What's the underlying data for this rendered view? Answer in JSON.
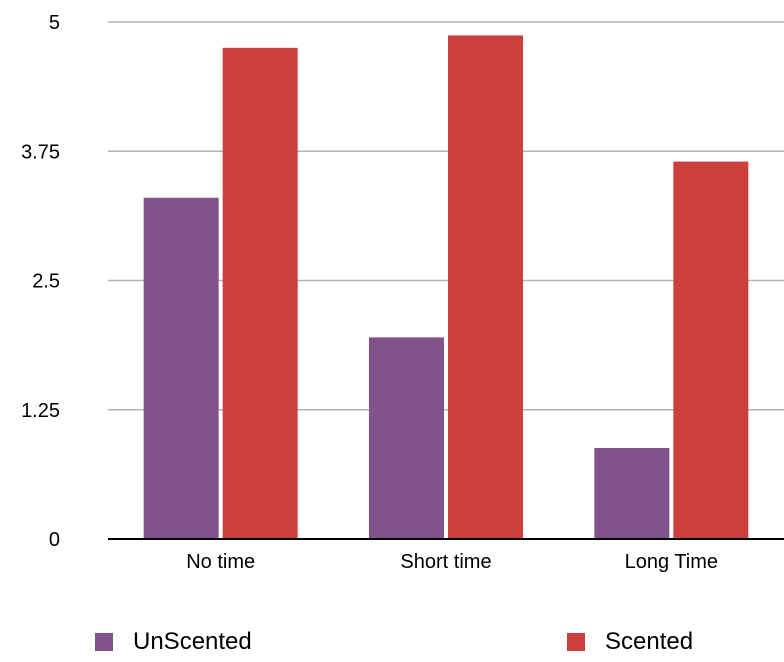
{
  "chart_data": {
    "type": "bar",
    "categories": [
      "No time",
      "Short time",
      "Long Time"
    ],
    "series": [
      {
        "name": "UnScented",
        "values": [
          3.3,
          1.95,
          0.88
        ],
        "color": "#82528c"
      },
      {
        "name": "Scented",
        "values": [
          4.75,
          4.87,
          3.65
        ],
        "color": "#cc3f3c"
      }
    ],
    "ylim": [
      0,
      5
    ],
    "yticks": [
      "0",
      "1.25",
      "2.5",
      "3.75",
      "5"
    ],
    "grid": true,
    "legend_position": "bottom"
  }
}
